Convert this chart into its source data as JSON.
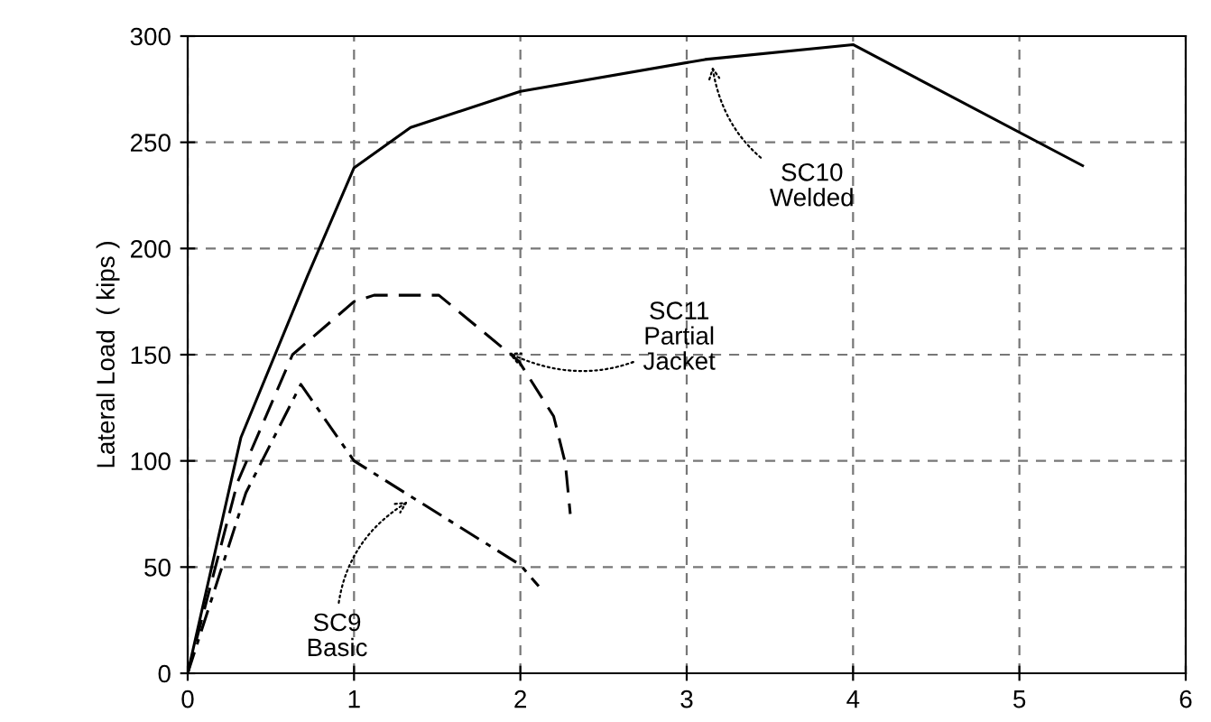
{
  "chart_data": {
    "type": "line",
    "ylabel": "Lateral Load  ( kips )",
    "xlim": [
      0,
      6
    ],
    "ylim": [
      0,
      300
    ],
    "xticks": [
      0,
      1,
      2,
      3,
      4,
      5,
      6
    ],
    "yticks": [
      0,
      50,
      100,
      150,
      200,
      250,
      300
    ],
    "grid": true,
    "marker": "none",
    "series": [
      {
        "color": "#000000",
        "line_style": "solid",
        "x": [
          0,
          0.32,
          0.72,
          1,
          1.34,
          2,
          3.11,
          4,
          5.38
        ],
        "values": [
          0,
          111,
          187,
          238,
          257,
          274,
          289,
          296,
          239
        ]
      },
      {
        "color": "#000000",
        "line_style": "dashed",
        "x": [
          0,
          0.3,
          0.63,
          1,
          1.12,
          1.51,
          1.99,
          2.2,
          2.27,
          2.3
        ],
        "values": [
          0,
          90,
          150,
          175,
          178,
          178,
          147,
          121,
          99,
          75
        ]
      },
      {
        "color": "#000000",
        "line_style": "dashdot",
        "x": [
          0,
          0.35,
          0.68,
          1,
          2,
          2.11
        ],
        "values": [
          0,
          85,
          136,
          100,
          51,
          41
        ]
      }
    ],
    "annotations": [
      {
        "text": "SC10\nWelded",
        "x": 3.15,
        "y": 288
      },
      {
        "text": "SC11\nPartial\nJacket",
        "x": 1.9,
        "y": 152
      },
      {
        "text": "SC9\nBasic",
        "x": 1.35,
        "y": 82
      }
    ]
  }
}
